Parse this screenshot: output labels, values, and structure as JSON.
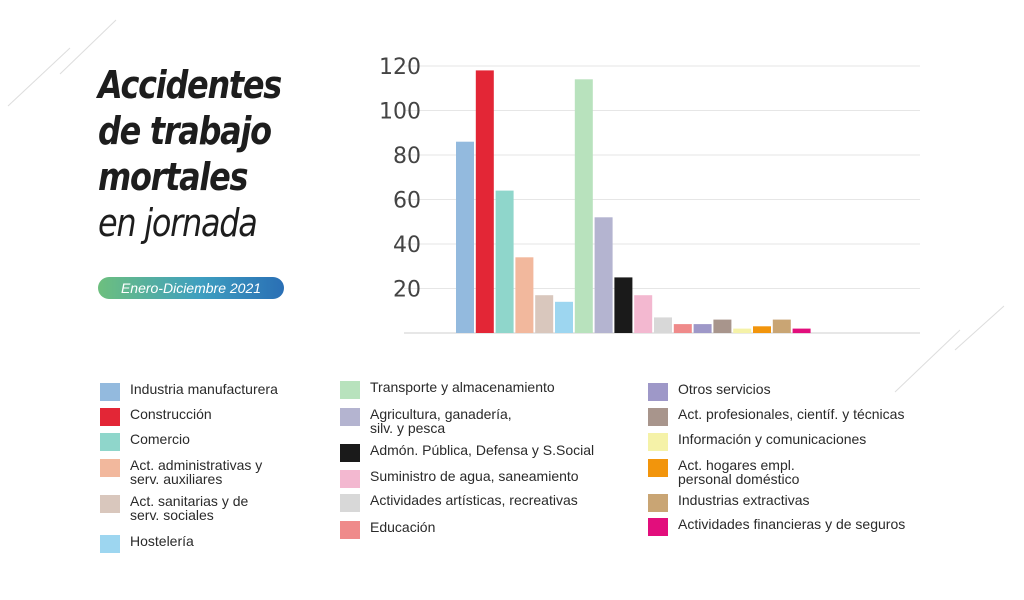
{
  "title": {
    "lines": [
      "Accidentes",
      "de trabajo",
      "mortales",
      "en jornada"
    ],
    "period": "Enero-Diciembre 2021"
  },
  "colors": {
    "gridline": "#e6e6e6",
    "axis_text": "#444444",
    "badge_start": "#6dbf7e",
    "badge_end": "#2a6fb5"
  },
  "chart_data": {
    "type": "bar",
    "title": "Accidentes de trabajo mortales en jornada",
    "subtitle": "Enero-Diciembre 2021",
    "xlabel": "",
    "ylabel": "",
    "ylim": [
      0,
      120
    ],
    "yticks": [
      20,
      40,
      60,
      80,
      100,
      120
    ],
    "grid": true,
    "legend_position": "bottom",
    "categories": [
      "Industria manufacturera",
      "Construcción",
      "Comercio",
      "Act. administrativas y\nserv. auxiliares",
      "Act. sanitarias y de\nserv. sociales",
      "Hostelería",
      "Transporte y almacenamiento",
      "Agricultura, ganadería,\nsilv. y pesca",
      "Admón. Pública, Defensa y S.Social",
      "Suministro de agua, saneamiento",
      "Actividades artísticas, recreativas",
      "Educación",
      "Otros servicios",
      "Act. profesionales, científ. y técnicas",
      "Información y comunicaciones",
      "Act. hogares empl.\npersonal doméstico",
      "Industrias extractivas",
      "Actividades financieras y de seguros"
    ],
    "values": [
      86,
      118,
      64,
      34,
      17,
      14,
      114,
      52,
      25,
      17,
      7,
      4,
      4,
      6,
      2,
      3,
      6,
      2
    ],
    "colors": [
      "#93bade",
      "#e32636",
      "#8fd6cb",
      "#f2b89d",
      "#d9c7bd",
      "#9dd6f0",
      "#b8e2bd",
      "#b4b4d0",
      "#1a1a1a",
      "#f3b8d0",
      "#d8d8d8",
      "#ef8a8a",
      "#9e98c8",
      "#a8958c",
      "#f5f2a8",
      "#f2950c",
      "#c9a574",
      "#e20e7c"
    ]
  }
}
